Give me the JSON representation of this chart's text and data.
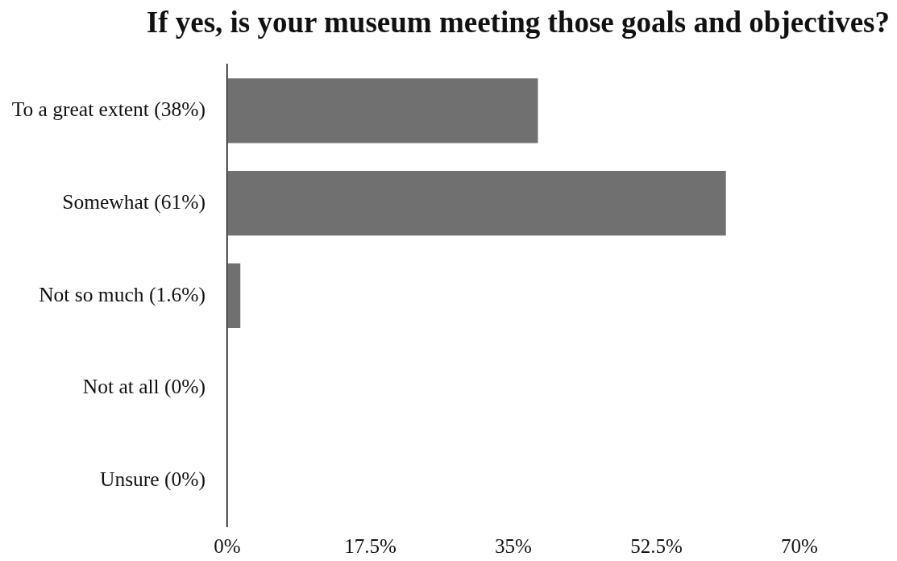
{
  "chart_data": {
    "type": "bar",
    "orientation": "horizontal",
    "title": "If yes, is your museum meeting those goals and objectives?",
    "categories": [
      "To a great extent (38%)",
      "Somewhat (61%)",
      "Not so much (1.6%)",
      "Not at all (0%)",
      "Unsure (0%)"
    ],
    "values": [
      38,
      61,
      1.6,
      0,
      0
    ],
    "color": "#707070",
    "xlim": [
      0,
      70
    ],
    "xticks": [
      {
        "value": 0,
        "label": "0%"
      },
      {
        "value": 17.5,
        "label": "17.5%"
      },
      {
        "value": 35,
        "label": "35%"
      },
      {
        "value": 52.5,
        "label": "52.5%"
      },
      {
        "value": 70,
        "label": "70%"
      }
    ]
  }
}
